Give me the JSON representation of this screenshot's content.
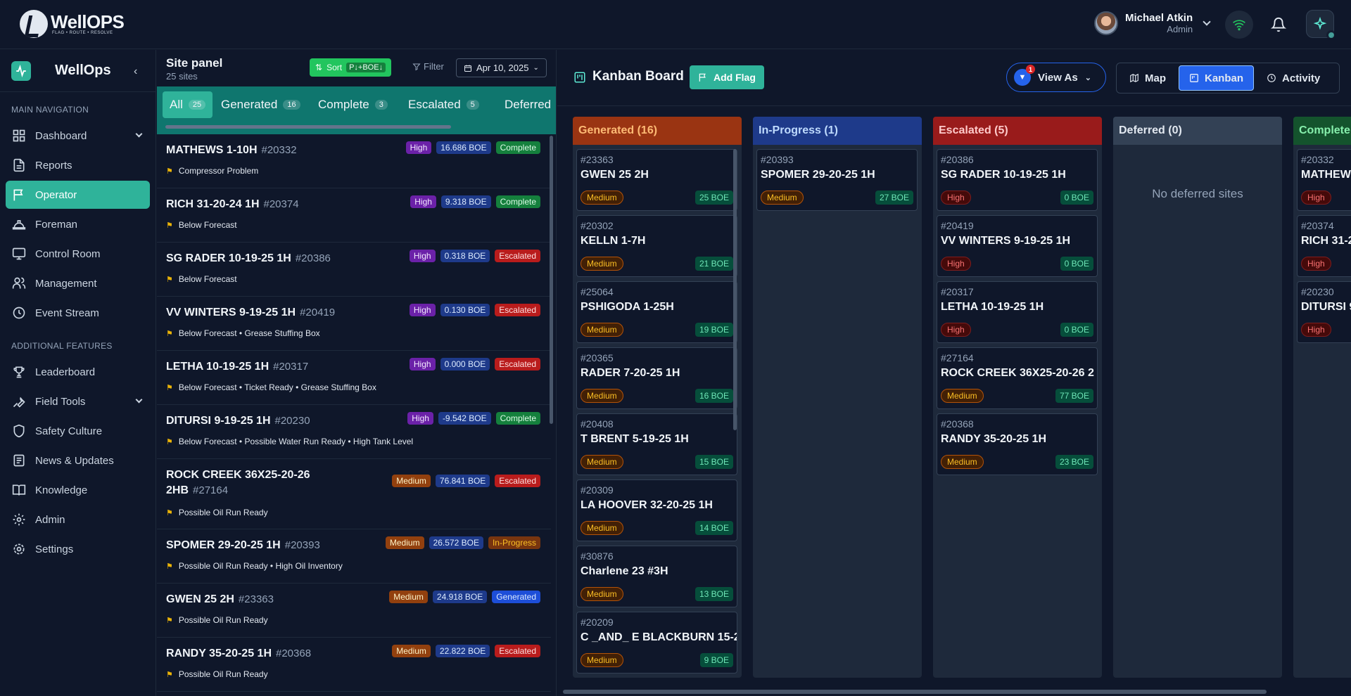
{
  "brand": {
    "name": "WellOPS",
    "tagline": "FLAG • ROUTE • RESOLVE"
  },
  "user": {
    "name": "Michael Atkin",
    "role": "Admin"
  },
  "sidebar": {
    "app_name": "WellOps",
    "main_title": "MAIN NAVIGATION",
    "main_items": [
      {
        "label": "Dashboard",
        "icon": "dashboard-icon"
      },
      {
        "label": "Reports",
        "icon": "reports-icon"
      },
      {
        "label": "Operator",
        "icon": "flag-icon"
      },
      {
        "label": "Foreman",
        "icon": "hardhat-icon"
      },
      {
        "label": "Control Room",
        "icon": "monitor-icon"
      },
      {
        "label": "Management",
        "icon": "users-icon"
      },
      {
        "label": "Event Stream",
        "icon": "clock-icon"
      }
    ],
    "extra_title": "ADDITIONAL FEATURES",
    "extra_items": [
      {
        "label": "Leaderboard",
        "icon": "trophy-icon"
      },
      {
        "label": "Field Tools",
        "icon": "wrench-icon"
      },
      {
        "label": "Safety Culture",
        "icon": "shield-icon"
      },
      {
        "label": "News & Updates",
        "icon": "news-icon"
      },
      {
        "label": "Knowledge",
        "icon": "book-icon"
      },
      {
        "label": "Admin",
        "icon": "gear-icon"
      },
      {
        "label": "Settings",
        "icon": "settings-icon"
      }
    ]
  },
  "site_panel": {
    "title": "Site panel",
    "subtitle": "25 sites",
    "sort_label": "Sort",
    "sort_key": "P↓+BOE↓",
    "filter_label": "Filter",
    "date": "Apr 10, 2025",
    "tabs": [
      {
        "label": "All",
        "count": "25"
      },
      {
        "label": "Generated",
        "count": "16"
      },
      {
        "label": "Complete",
        "count": "3"
      },
      {
        "label": "Escalated",
        "count": "5"
      },
      {
        "label": "Deferred",
        "count": ""
      }
    ],
    "sites": [
      {
        "name": "MATHEWS 1-10H",
        "id": "#20332",
        "priority": "High",
        "boe": "16.686 BOE",
        "status": "Complete",
        "note": "Compressor Problem"
      },
      {
        "name": "RICH 31-20-24 1H",
        "id": "#20374",
        "priority": "High",
        "boe": "9.318 BOE",
        "status": "Complete",
        "note": "Below Forecast"
      },
      {
        "name": "SG RADER 10-19-25 1H",
        "id": "#20386",
        "priority": "High",
        "boe": "0.318 BOE",
        "status": "Escalated",
        "note": "Below Forecast"
      },
      {
        "name": "VV WINTERS 9-19-25 1H",
        "id": "#20419",
        "priority": "High",
        "boe": "0.130 BOE",
        "status": "Escalated",
        "note": "Below Forecast • Grease Stuffing Box"
      },
      {
        "name": "LETHA 10-19-25 1H",
        "id": "#20317",
        "priority": "High",
        "boe": "0.000 BOE",
        "status": "Escalated",
        "note": "Below Forecast • Ticket Ready • Grease Stuffing Box"
      },
      {
        "name": "DITURSI 9-19-25 1H",
        "id": "#20230",
        "priority": "High",
        "boe": "-9.542 BOE",
        "status": "Complete",
        "note": "Below Forecast • Possible Water Run Ready • High Tank Level"
      },
      {
        "name": "ROCK CREEK 36X25-20-26 2HB",
        "id": "#27164",
        "priority": "Medium",
        "boe": "76.841 BOE",
        "status": "Escalated",
        "note": "Possible Oil Run Ready"
      },
      {
        "name": "SPOMER 29-20-25 1H",
        "id": "#20393",
        "priority": "Medium",
        "boe": "26.572 BOE",
        "status": "In-Progress",
        "note": "Possible Oil Run Ready • High Oil Inventory"
      },
      {
        "name": "GWEN 25 2H",
        "id": "#23363",
        "priority": "Medium",
        "boe": "24.918 BOE",
        "status": "Generated",
        "note": "Possible Oil Run Ready"
      },
      {
        "name": "RANDY 35-20-25 1H",
        "id": "#20368",
        "priority": "Medium",
        "boe": "22.822 BOE",
        "status": "Escalated",
        "note": "Possible Oil Run Ready"
      }
    ]
  },
  "kanban": {
    "title": "Kanban Board",
    "add_flag": "Add Flag",
    "view_as": "View As",
    "view_as_badge": "1",
    "view_tabs": [
      "Map",
      "Kanban",
      "Activity"
    ],
    "columns": [
      {
        "title": "Generated (16)",
        "cards": [
          {
            "id": "#23363",
            "name": "GWEN 25 2H",
            "priority": "Medium",
            "boe": "25 BOE"
          },
          {
            "id": "#20302",
            "name": "KELLN 1-7H",
            "priority": "Medium",
            "boe": "21 BOE"
          },
          {
            "id": "#25064",
            "name": "PSHIGODA 1-25H",
            "priority": "Medium",
            "boe": "19 BOE"
          },
          {
            "id": "#20365",
            "name": "RADER 7-20-25 1H",
            "priority": "Medium",
            "boe": "16 BOE"
          },
          {
            "id": "#20408",
            "name": "T BRENT 5-19-25 1H",
            "priority": "Medium",
            "boe": "15 BOE"
          },
          {
            "id": "#20309",
            "name": "LA HOOVER 32-20-25 1H",
            "priority": "Medium",
            "boe": "14 BOE"
          },
          {
            "id": "#30876",
            "name": "Charlene 23 #3H",
            "priority": "Medium",
            "boe": "13 BOE"
          },
          {
            "id": "#20209",
            "name": "C _AND_ E BLACKBURN 15-2",
            "priority": "Medium",
            "boe": "9 BOE"
          }
        ]
      },
      {
        "title": "In-Progress (1)",
        "cards": [
          {
            "id": "#20393",
            "name": "SPOMER 29-20-25 1H",
            "priority": "Medium",
            "boe": "27 BOE"
          }
        ]
      },
      {
        "title": "Escalated (5)",
        "cards": [
          {
            "id": "#20386",
            "name": "SG RADER 10-19-25 1H",
            "priority": "High",
            "boe": "0 BOE"
          },
          {
            "id": "#20419",
            "name": "VV WINTERS 9-19-25 1H",
            "priority": "High",
            "boe": "0 BOE"
          },
          {
            "id": "#20317",
            "name": "LETHA 10-19-25 1H",
            "priority": "High",
            "boe": "0 BOE"
          },
          {
            "id": "#27164",
            "name": "ROCK CREEK 36X25-20-26 2",
            "priority": "Medium",
            "boe": "77 BOE"
          },
          {
            "id": "#20368",
            "name": "RANDY 35-20-25 1H",
            "priority": "Medium",
            "boe": "23 BOE"
          }
        ]
      },
      {
        "title": "Deferred (0)",
        "empty_text": "No deferred sites",
        "cards": []
      },
      {
        "title": "Complete",
        "cards": [
          {
            "id": "#20332",
            "name": "MATHEW",
            "priority": "High",
            "boe": ""
          },
          {
            "id": "#20374",
            "name": "RICH 31-2",
            "priority": "High",
            "boe": ""
          },
          {
            "id": "#20230",
            "name": "DITURSI 9",
            "priority": "High",
            "boe": ""
          }
        ]
      }
    ]
  },
  "colors": {
    "accent": "#2fb39a",
    "background": "#0f172a",
    "panel": "#1e293b",
    "primary_blue": "#2563eb"
  }
}
